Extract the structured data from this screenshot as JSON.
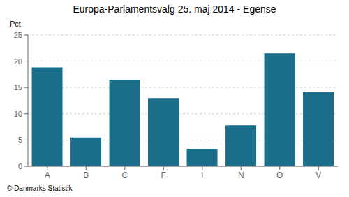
{
  "chart_data": {
    "type": "bar",
    "title": "Europa-Parlamentsvalg 25. maj 2014 - Egense",
    "categories": [
      "A",
      "B",
      "C",
      "F",
      "I",
      "N",
      "O",
      "V"
    ],
    "values": [
      18.8,
      5.5,
      16.5,
      13.0,
      3.3,
      7.8,
      21.5,
      14.1
    ],
    "color": "#1a6e8a",
    "ylabel": "Pct.",
    "ylim": [
      0,
      25
    ],
    "yticks": [
      0,
      5,
      10,
      15,
      20,
      25
    ],
    "grid": true,
    "footer": "© Danmarks Statistik"
  }
}
